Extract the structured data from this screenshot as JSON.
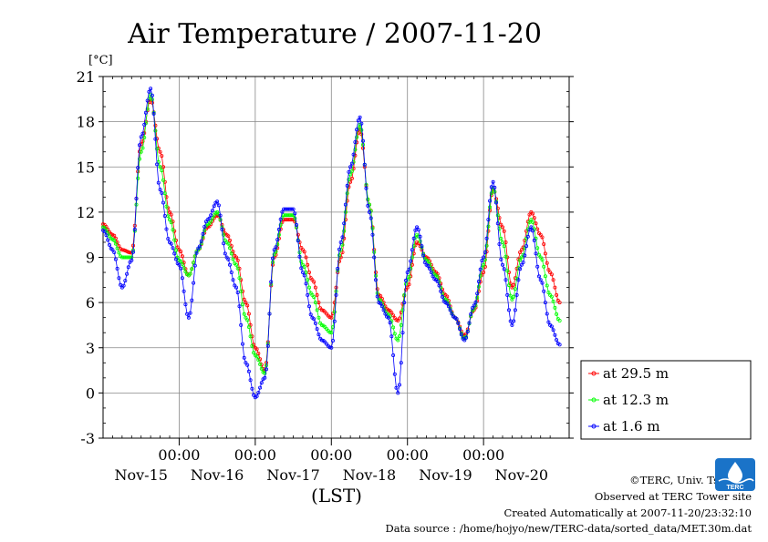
{
  "chart_data": {
    "type": "line",
    "title": "Air Temperature / 2007-11-20",
    "unit_label": "[°C]",
    "xlabel": "(LST)",
    "ylim": [
      -3,
      21
    ],
    "yticks": [
      -3,
      0,
      3,
      6,
      9,
      12,
      15,
      18,
      21
    ],
    "day_ticks": [
      "00:00",
      "00:00",
      "00:00",
      "00:00",
      "00:00"
    ],
    "date_labels": [
      "Nov-15",
      "Nov-16",
      "Nov-17",
      "Nov-18",
      "Nov-19",
      "Nov-20"
    ],
    "grid": true,
    "legend_position": "right",
    "x_hours": [
      0,
      3,
      6,
      9,
      12,
      15,
      18,
      21,
      24,
      27,
      30,
      33,
      36,
      39,
      42,
      45,
      48,
      51,
      54,
      57,
      60,
      63,
      66,
      69,
      72,
      75,
      78,
      81,
      84,
      87,
      90,
      93,
      96,
      99,
      102,
      105,
      108,
      111,
      114,
      117,
      120,
      123,
      126,
      129,
      132,
      135,
      138,
      141,
      144
    ],
    "series": [
      {
        "name": "at 29.5 m",
        "color": "#ff0000",
        "values": [
          11.2,
          10.5,
          9.5,
          9.3,
          16.5,
          19.5,
          16.0,
          12.0,
          9.5,
          7.8,
          9.5,
          11.0,
          11.8,
          10.5,
          9.0,
          6.0,
          3.0,
          1.5,
          9.0,
          11.5,
          11.5,
          9.5,
          7.5,
          5.5,
          5.0,
          9.0,
          14.0,
          17.5,
          12.5,
          6.5,
          5.5,
          4.8,
          7.0,
          10.0,
          9.0,
          8.0,
          6.5,
          5.0,
          3.8,
          5.5,
          8.0,
          13.5,
          11.0,
          7.0,
          9.5,
          12.0,
          10.5,
          8.0,
          6.0
        ]
      },
      {
        "name": "at 12.3 m",
        "color": "#00ff00",
        "values": [
          11.0,
          10.2,
          9.0,
          9.0,
          16.0,
          19.8,
          15.0,
          11.5,
          8.8,
          7.8,
          9.5,
          11.2,
          12.0,
          10.0,
          8.5,
          5.0,
          2.5,
          1.3,
          9.2,
          11.8,
          11.8,
          8.5,
          6.5,
          4.5,
          4.0,
          9.5,
          14.5,
          17.8,
          12.5,
          6.2,
          5.2,
          3.5,
          7.5,
          10.5,
          8.8,
          7.8,
          6.2,
          5.0,
          3.6,
          5.6,
          8.5,
          13.6,
          10.0,
          6.2,
          9.0,
          11.5,
          9.0,
          6.5,
          4.8
        ]
      },
      {
        "name": "at 1.6 m",
        "color": "#0000ff",
        "values": [
          10.8,
          9.5,
          7.0,
          8.8,
          17.0,
          20.2,
          13.5,
          10.0,
          8.5,
          5.0,
          9.6,
          11.5,
          12.7,
          9.0,
          7.0,
          2.0,
          -0.3,
          1.0,
          9.5,
          12.2,
          12.2,
          8.0,
          5.0,
          3.5,
          3.0,
          10.0,
          15.0,
          18.3,
          12.0,
          6.0,
          5.0,
          0.0,
          8.0,
          11.0,
          8.5,
          7.5,
          6.0,
          5.0,
          3.5,
          5.8,
          9.0,
          14.0,
          8.5,
          4.5,
          8.5,
          11.0,
          7.5,
          4.5,
          3.2
        ]
      }
    ]
  },
  "credits": {
    "copyright": "©TERC, Univ. Tsukuba",
    "observed": "Observed at TERC Tower site",
    "created": "Created Automatically at 2007-11-20/23:32:10",
    "source": "Data source : /home/hojyo/new/TERC-data/sorted_data/MET.30m.dat"
  },
  "logo": {
    "text": "TERC",
    "icon": "terc-logo-icon",
    "color": "#1a73c8"
  }
}
